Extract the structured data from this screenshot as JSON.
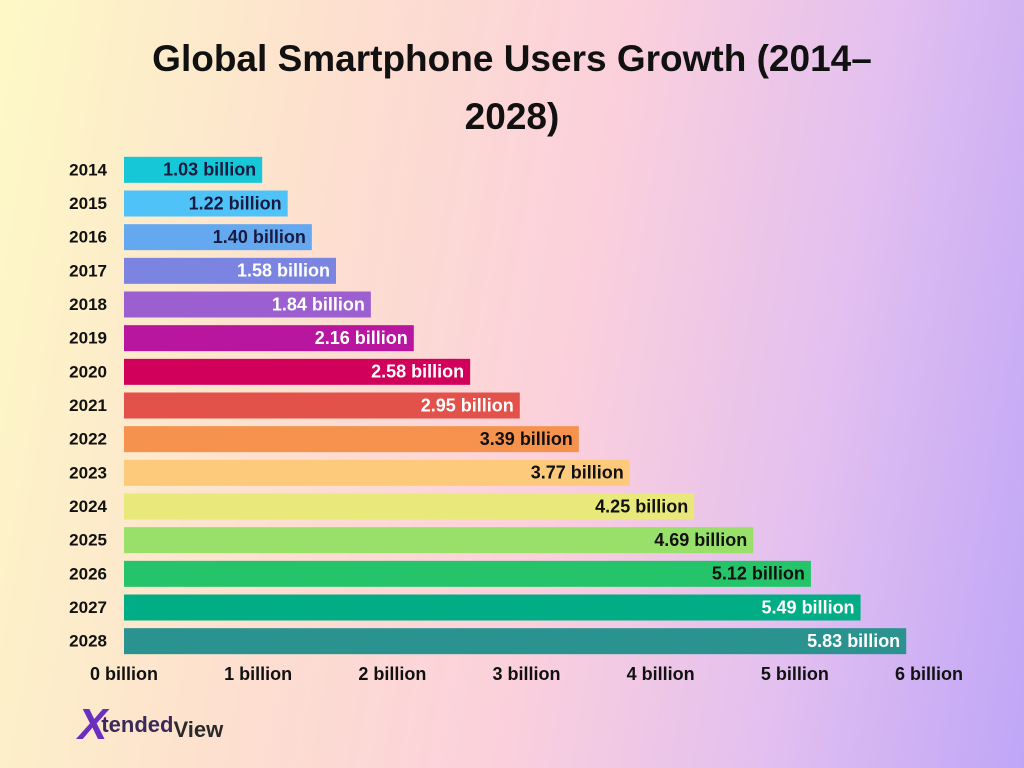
{
  "chart_data": {
    "type": "hbar",
    "title": "Global Smartphone Users Growth (2014–2028)",
    "categories": [
      "2014",
      "2015",
      "2016",
      "2017",
      "2018",
      "2019",
      "2020",
      "2021",
      "2022",
      "2023",
      "2024",
      "2025",
      "2026",
      "2027",
      "2028"
    ],
    "values": [
      1.03,
      1.22,
      1.4,
      1.58,
      1.84,
      2.16,
      2.58,
      2.95,
      3.39,
      3.77,
      4.25,
      4.69,
      5.12,
      5.49,
      5.83
    ],
    "value_labels": [
      "1.03 billion",
      "1.22 billion",
      "1.40 billion",
      "1.58 billion",
      "1.84 billion",
      "2.16 billion",
      "2.58 billion",
      "2.95 billion",
      "3.39 billion",
      "3.77 billion",
      "4.25 billion",
      "4.69 billion",
      "5.12 billion",
      "5.49 billion",
      "5.83 billion"
    ],
    "colors": [
      "#16c7d8",
      "#4fc3f7",
      "#64a8f0",
      "#7b84e0",
      "#9b5fcf",
      "#b8169f",
      "#d1005a",
      "#e2524a",
      "#f5924d",
      "#fdc97a",
      "#e9e87a",
      "#98e06a",
      "#25c46a",
      "#00ad85",
      "#2a9390"
    ],
    "value_label_colors": [
      "#1a1a40",
      "#1a1a40",
      "#1a1a40",
      "#ffffff",
      "#ffffff",
      "#ffffff",
      "#ffffff",
      "#ffffff",
      "#111111",
      "#111111",
      "#111111",
      "#111111",
      "#111111",
      "#ffffff",
      "#ffffff"
    ],
    "xlim": [
      0,
      6
    ],
    "xticks": [
      {
        "value": 0,
        "label": "0 billion"
      },
      {
        "value": 1,
        "label": "1 billion"
      },
      {
        "value": 2,
        "label": "2 billion"
      },
      {
        "value": 3,
        "label": "3 billion"
      },
      {
        "value": 4,
        "label": "4 billion"
      },
      {
        "value": 5,
        "label": "5 billion"
      },
      {
        "value": 6,
        "label": "6 billion"
      }
    ],
    "grid": false
  },
  "logo": {
    "mark": "X",
    "text": "tended",
    "suffix": "View"
  }
}
